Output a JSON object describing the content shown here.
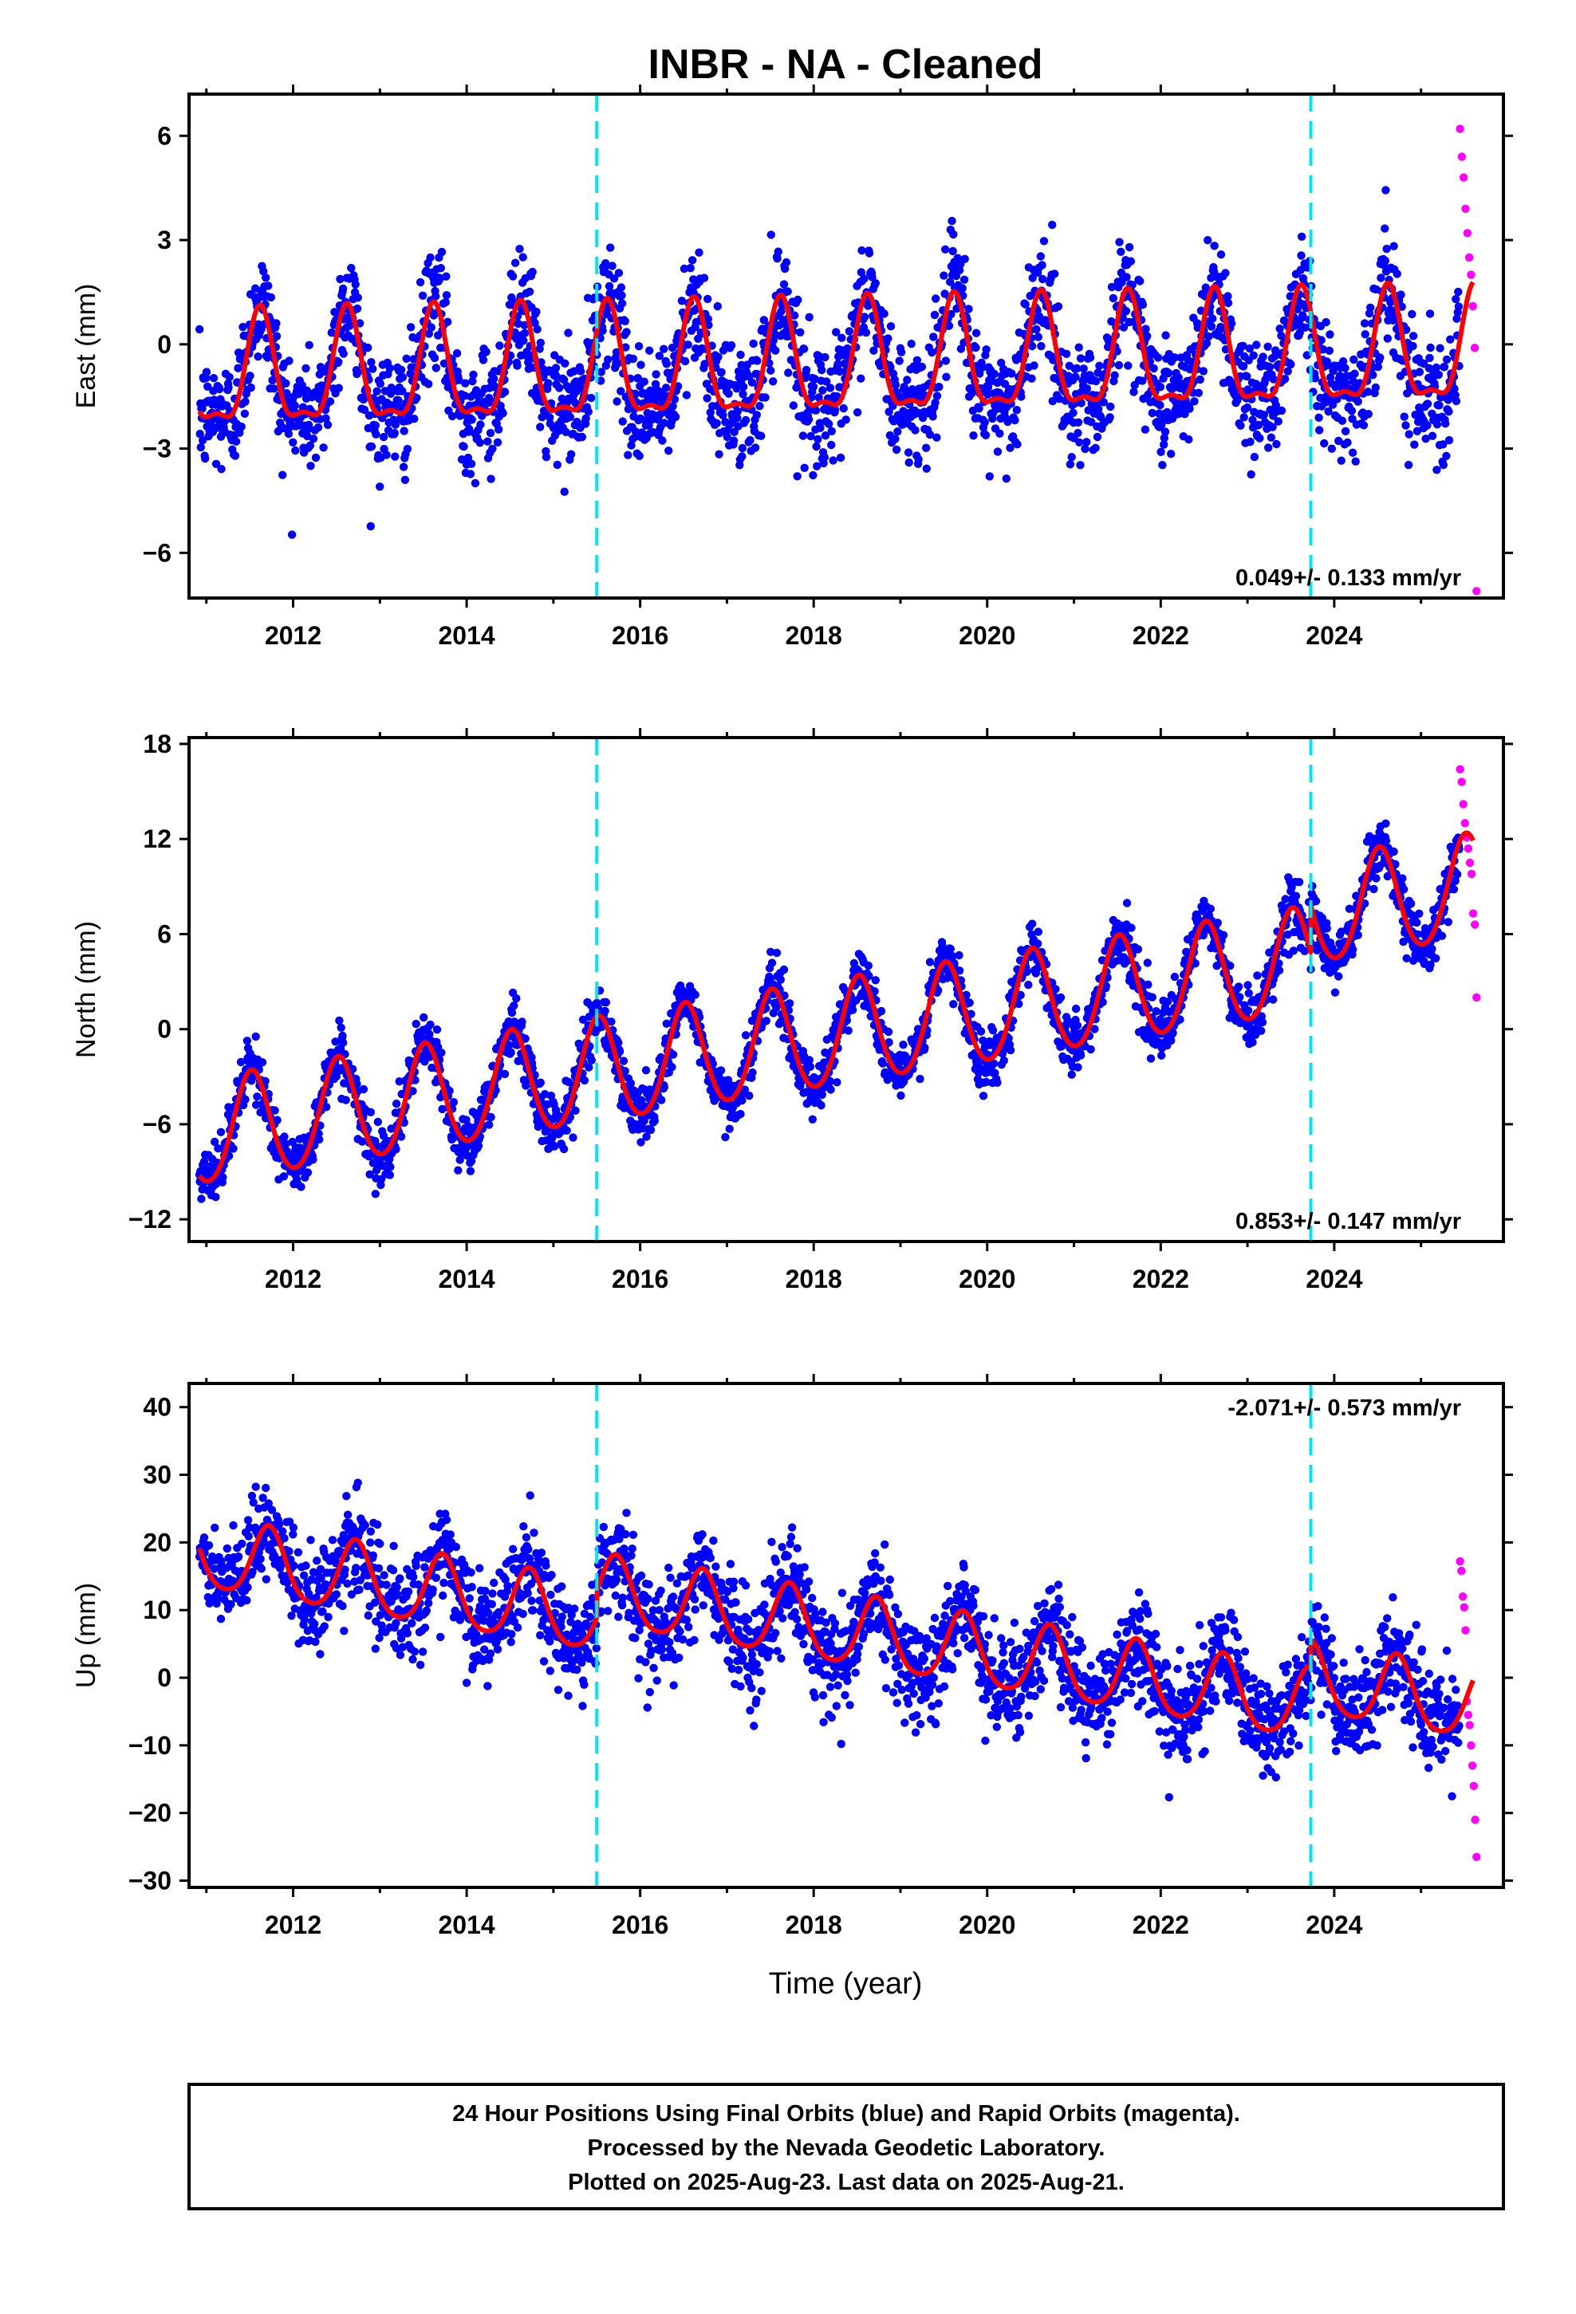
{
  "title": "INBR  - NA - Cleaned",
  "colors": {
    "final": "#0000ff",
    "rapid": "#ff00ff",
    "model": "#ff0000",
    "event": "#00e5ee"
  },
  "chart_data": [
    {
      "type": "scatter",
      "component": "east",
      "ylabel": "East (mm)",
      "ylim": [
        -7.3,
        7.2
      ],
      "yticks": [
        -6,
        -3,
        0,
        3,
        6
      ],
      "xlim": [
        2010.8,
        2025.95
      ],
      "xticks": [
        2012,
        2014,
        2016,
        2018,
        2020,
        2022,
        2024
      ],
      "rate_label": "0.049+/- 0.133 mm/yr",
      "rate_mm_yr": 0.049,
      "rate_sigma": 0.133,
      "intercept_2011": -1.0,
      "annual_amp": 1.55,
      "annual_peak_phase": 0.62,
      "semiannual_amp": 0.55,
      "noise_sd": 0.85,
      "events": [
        2015.5,
        2023.73
      ],
      "offsets": [],
      "rapid_range": [
        2025.45,
        2025.64
      ],
      "rapid_values": [
        6.2,
        5.4,
        4.8,
        3.9,
        3.2,
        2.5,
        2.0,
        1.1,
        -0.1,
        -7.1
      ]
    },
    {
      "type": "scatter",
      "component": "north",
      "ylabel": "North (mm)",
      "ylim": [
        -13.4,
        18.4
      ],
      "yticks": [
        -12,
        -6,
        0,
        6,
        12,
        18
      ],
      "xlim": [
        2010.8,
        2025.95
      ],
      "xticks": [
        2012,
        2014,
        2016,
        2018,
        2020,
        2022,
        2024
      ],
      "rate_label": "0.853+/- 0.147 mm/yr",
      "rate_mm_yr": 0.853,
      "rate_sigma": 0.147,
      "intercept_2011": -6.6,
      "annual_amp": 3.3,
      "annual_peak_phase": 0.52,
      "semiannual_amp": 0.3,
      "noise_sd": 0.9,
      "events": [
        2015.5,
        2023.73
      ],
      "offsets": [
        [
          2023.73,
          3.0
        ]
      ],
      "rapid_range": [
        2025.45,
        2025.64
      ],
      "rapid_values": [
        16.4,
        15.6,
        14.2,
        13.0,
        12.1,
        11.4,
        10.5,
        9.8,
        7.3,
        6.6,
        2.0
      ]
    },
    {
      "type": "scatter",
      "component": "up",
      "ylabel": "Up (mm)",
      "ylim": [
        -31,
        43.5
      ],
      "yticks": [
        -30,
        -20,
        -10,
        0,
        10,
        20,
        30,
        40
      ],
      "xlim": [
        2010.8,
        2025.95
      ],
      "xticks": [
        2012,
        2014,
        2016,
        2018,
        2020,
        2022,
        2024
      ],
      "xlabel": "Time (year)",
      "rate_label": "-2.071+/- 0.573 mm/yr",
      "rate_mm_yr": -2.071,
      "rate_sigma": 0.573,
      "intercept_2011": 18.0,
      "annual_amp": 5.2,
      "annual_peak_phase": 0.72,
      "semiannual_amp": 0.8,
      "noise_sd": 3.6,
      "events": [
        2015.5,
        2023.73
      ],
      "offsets": [
        [
          2015.5,
          4.0
        ],
        [
          2023.73,
          4.0
        ]
      ],
      "rapid_range": [
        2025.45,
        2025.64
      ],
      "rapid_values": [
        17.2,
        15.8,
        12.0,
        10.4,
        7.0,
        -3.5,
        -5.5,
        -7.0,
        -10.0,
        -13.0,
        -16.0,
        -21.0,
        -26.5
      ]
    }
  ],
  "footer": {
    "line1": "24 Hour Positions Using Final Orbits (blue) and Rapid Orbits (magenta).",
    "line2": "Processed by the Nevada Geodetic Laboratory.",
    "line3": "Plotted on 2025-Aug-23. Last data on 2025-Aug-21."
  }
}
